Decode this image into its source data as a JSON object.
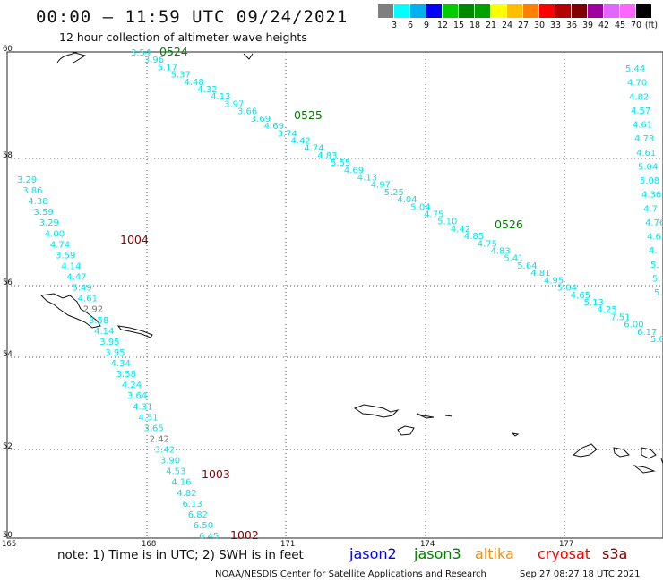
{
  "header": {
    "title": "00:00 – 11:59 UTC 09/24/2021",
    "subtitle": "12 hour collection of altimeter wave heights"
  },
  "color_scale": {
    "unit": "(ft)",
    "labels": [
      "3",
      "6",
      "9",
      "12",
      "15",
      "18",
      "21",
      "24",
      "27",
      "30",
      "33",
      "36",
      "39",
      "42",
      "45",
      "70"
    ],
    "colors": [
      "#7f7f7f",
      "#00ffff",
      "#00b0f0",
      "#0000ff",
      "#00cc00",
      "#008800",
      "#00a000",
      "#ffff00",
      "#ffbf00",
      "#ff8000",
      "#ff0000",
      "#b40000",
      "#800000",
      "#a000a0",
      "#e066ff",
      "#ff66ff",
      "#000000"
    ]
  },
  "map": {
    "lat_ticks": [
      "60",
      "58",
      "56",
      "54",
      "52",
      "50"
    ],
    "lon_ticks": [
      "165",
      "168",
      "171",
      "174",
      "177"
    ],
    "pass_labels": [
      {
        "text": "0524",
        "color": "#008000"
      },
      {
        "text": "0525",
        "color": "#008000"
      },
      {
        "text": "0526",
        "color": "#008000"
      },
      {
        "text": "1004",
        "color": "#8b0000"
      },
      {
        "text": "1003",
        "color": "#8b0000"
      },
      {
        "text": "1002",
        "color": "#8b0000"
      }
    ],
    "track_ne": [
      "3.54",
      "3.96",
      "5.17",
      "5.37",
      "4.48",
      "4.32",
      "4.13",
      "3.97",
      "3.66",
      "3.69",
      "4.69",
      "3.74",
      "4.42",
      "4.74",
      "4.83",
      "5.55",
      "4.69",
      "4.13",
      "4.97",
      "5.25",
      "4.04",
      "5.04",
      "4.75",
      "5.10",
      "4.42",
      "4.85",
      "4.75",
      "4.83",
      "5.41",
      "5.64",
      "4.81",
      "4.95",
      "5.04",
      "4.65",
      "5.13",
      "4.25",
      "7.51",
      "6.00",
      "6.17",
      "5.0"
    ],
    "track_w": [
      "3.29",
      "3.86",
      "4.38",
      "3.59",
      "3.29",
      "4.00",
      "4.74",
      "3.59",
      "4.14",
      "4.47",
      "5.49",
      "4.61",
      "2.92",
      "3.58",
      "4.14",
      "3.95",
      "3.95",
      "4.34",
      "3.58",
      "4.24",
      "3.64",
      "4.31",
      "4.51",
      "3.65",
      "2.42",
      "3.42",
      "3.90",
      "4.53",
      "4.16",
      "4.82",
      "6.13",
      "6.82",
      "6.50",
      "6.45"
    ],
    "track_e": [
      "5.44",
      "4.70",
      "4.82",
      "4.57",
      "4.61",
      "4.73",
      "4.61",
      "5.04",
      "5.08",
      "4.36",
      "4.7",
      "4.76",
      "4.6",
      "4.",
      "5.",
      "5.",
      "5."
    ]
  },
  "footer": {
    "note": "note: 1) Time is in UTC; 2) SWH is in feet",
    "satellites": [
      {
        "name": "jason2",
        "color": "#0000ff"
      },
      {
        "name": "jason3",
        "color": "#008000"
      },
      {
        "name": "altika",
        "color": "#ff8c00"
      },
      {
        "name": "cryosat",
        "color": "#ff0000"
      },
      {
        "name": "s3a",
        "color": "#8b0000"
      }
    ],
    "credit": "NOAA/NESDIS Center for Satellite Applications and Research",
    "timestamp": "Sep 27 08:27:18 UTC 2021"
  }
}
